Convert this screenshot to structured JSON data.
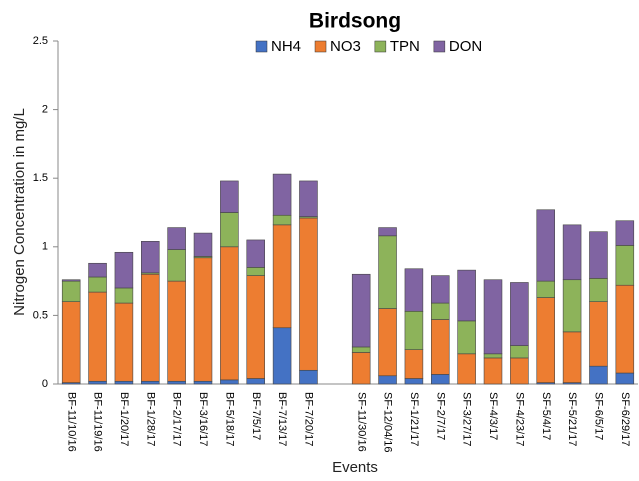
{
  "chart_data": {
    "type": "bar",
    "stacked": true,
    "title": "Birdsong",
    "ylabel": "Nitrogen Concentration in mg/L",
    "xlabel": "Events",
    "categories": [
      "BF-11/10/16",
      "BF-11/19/16",
      "BF-1/20/17",
      "BF-1/28/17",
      "BF-2/17/17",
      "BF-3/16/17",
      "BF-5/18/17",
      "BF-7/5/17",
      "BF-7/13/17",
      "BF-7/20/17",
      null,
      "SF-11/30/16",
      "SF-12/04/16",
      "SF-1/21/17",
      "SF-2/7/17",
      "SF-3/27/17",
      "SF-4/3/17",
      "SF-4/23/17",
      "SF-5/4/17",
      "SF-5/21/17",
      "SF-6/5/17",
      "SF-6/29/17"
    ],
    "series": [
      {
        "name": "NH4",
        "color": "#4472c4",
        "values": [
          0.01,
          0.02,
          0.02,
          0.02,
          0.02,
          0.02,
          0.03,
          0.04,
          0.41,
          0.1,
          null,
          0,
          0.06,
          0.04,
          0.07,
          0,
          0,
          0,
          0.01,
          0.01,
          0.13,
          0.08
        ]
      },
      {
        "name": "NO3",
        "color": "#ed7d31",
        "values": [
          0.59,
          0.65,
          0.57,
          0.78,
          0.73,
          0.9,
          0.97,
          0.75,
          0.75,
          1.11,
          null,
          0.23,
          0.49,
          0.21,
          0.4,
          0.22,
          0.19,
          0.19,
          0.62,
          0.37,
          0.47,
          0.64
        ]
      },
      {
        "name": "TPN",
        "color": "#8db35a",
        "values": [
          0.15,
          0.11,
          0.11,
          0.01,
          0.23,
          0.01,
          0.25,
          0.06,
          0.07,
          0.01,
          null,
          0.04,
          0.53,
          0.28,
          0.12,
          0.24,
          0.03,
          0.09,
          0.12,
          0.38,
          0.17,
          0.29
        ]
      },
      {
        "name": "DON",
        "color": "#8064a2",
        "values": [
          0.01,
          0.1,
          0.26,
          0.23,
          0.16,
          0.17,
          0.23,
          0.2,
          0.3,
          0.26,
          null,
          0.53,
          0.06,
          0.31,
          0.2,
          0.37,
          0.54,
          0.46,
          0.52,
          0.4,
          0.34,
          0.18
        ]
      }
    ],
    "ylim": [
      0,
      2.5
    ],
    "yticks": [
      0,
      0.5,
      1,
      1.5,
      2,
      2.5
    ],
    "grid": false,
    "legend": "top"
  }
}
